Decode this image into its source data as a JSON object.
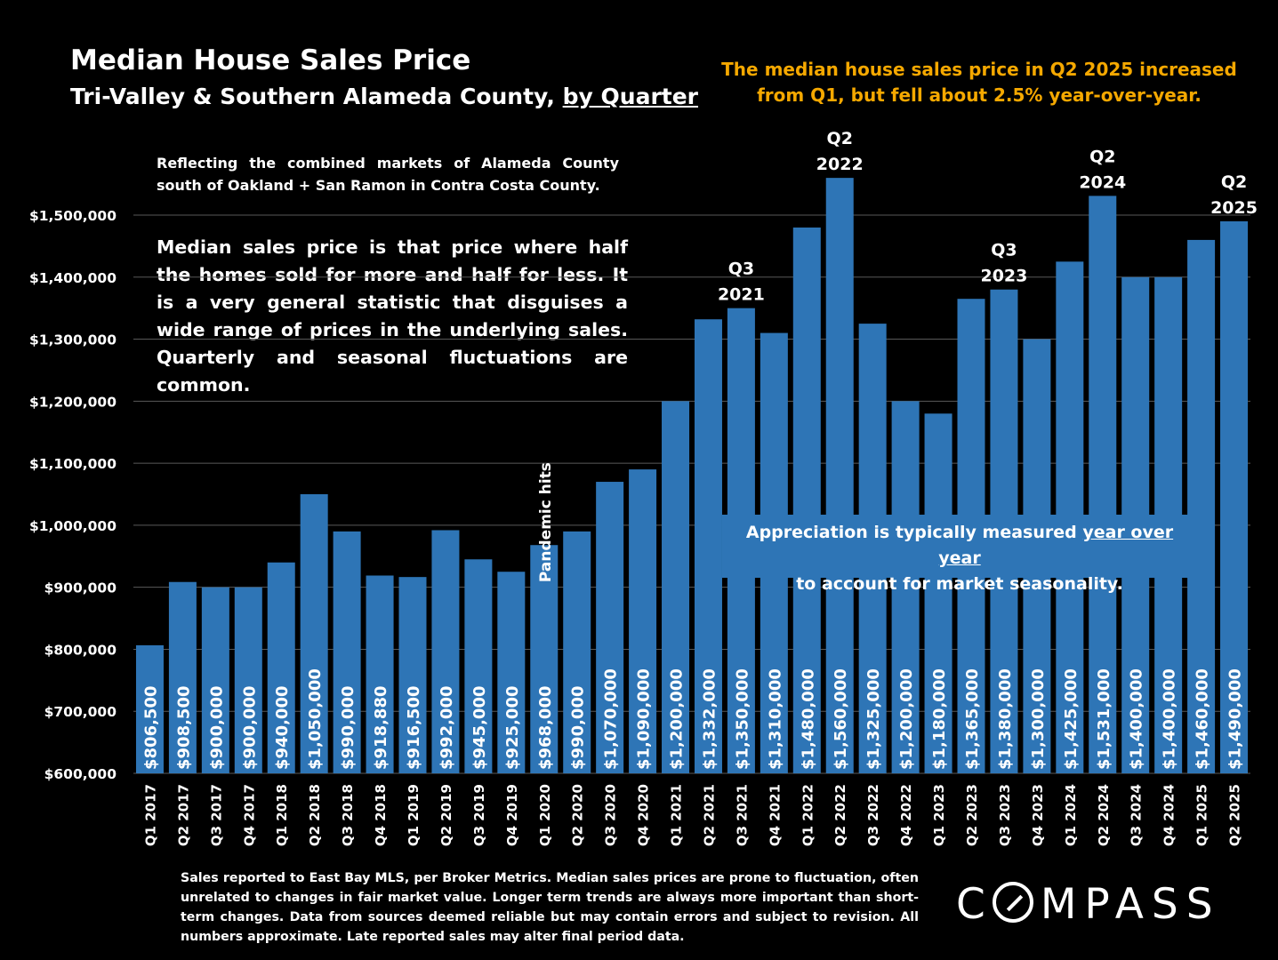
{
  "header": {
    "title": "Median House Sales Price",
    "subtitle_main": "Tri-Valley & Southern Alameda County, ",
    "subtitle_underlined": "by Quarter",
    "headline": "The median house sales price in Q2 2025 increased from Q1, but fell about 2.5% year-over-year."
  },
  "notes": {
    "combined_markets": "Reflecting the combined markets of Alameda County south of Oakland + San Ramon in Contra Costa County.",
    "median_definition": "Median sales price is that price where half the homes sold for more and half for less. It is a very general statistic that disguises a wide range of prices in the underlying sales. Quarterly and seasonal fluctuations are common.",
    "callout_part1": "Appreciation is typically measured ",
    "callout_underlined": "year over year",
    "callout_part2": "to account for market seasonality.",
    "footer": "Sales reported to East Bay MLS, per Broker Metrics. Median sales prices are prone to fluctuation, often unrelated to changes in fair market value. Longer term trends are always more important than short-term changes. Data from sources deemed reliable but may contain errors and subject to revision. All numbers approximate. Late reported sales may alter final period data."
  },
  "logo": {
    "text": "COMPASS"
  },
  "colors": {
    "background": "#000000",
    "bar": "#2e75b6",
    "accent": "#f5a800",
    "text": "#ffffff"
  },
  "chart_data": {
    "type": "bar",
    "title": "Median House Sales Price",
    "categories": [
      "Q1 2017",
      "Q2 2017",
      "Q3 2017",
      "Q4 2017",
      "Q1 2018",
      "Q2 2018",
      "Q3 2018",
      "Q4 2018",
      "Q1 2019",
      "Q2 2019",
      "Q3 2019",
      "Q4 2019",
      "Q1 2020",
      "Q2 2020",
      "Q3 2020",
      "Q4 2020",
      "Q1 2021",
      "Q2 2021",
      "Q3 2021",
      "Q4 2021",
      "Q1 2022",
      "Q2 2022",
      "Q3 2022",
      "Q4 2022",
      "Q1 2023",
      "Q2 2023",
      "Q3 2023",
      "Q4 2023",
      "Q1 2024",
      "Q2 2024",
      "Q3 2024",
      "Q4 2024",
      "Q1 2025",
      "Q2 2025"
    ],
    "values": [
      806500,
      908500,
      900000,
      900000,
      940000,
      1050000,
      990000,
      918880,
      916500,
      992000,
      945000,
      925000,
      968000,
      990000,
      1070000,
      1090000,
      1200000,
      1332000,
      1350000,
      1310000,
      1480000,
      1560000,
      1325000,
      1200000,
      1180000,
      1365000,
      1380000,
      1300000,
      1425000,
      1531000,
      1400000,
      1400000,
      1460000,
      1490000
    ],
    "value_labels": [
      "$806,500",
      "$908,500",
      "$900,000",
      "$900,000",
      "$940,000",
      "$1,050,000",
      "$990,000",
      "$918,880",
      "$916,500",
      "$992,000",
      "$945,000",
      "$925,000",
      "$968,000",
      "$990,000",
      "$1,070,000",
      "$1,090,000",
      "$1,200,000",
      "$1,332,000",
      "$1,350,000",
      "$1,310,000",
      "$1,480,000",
      "$1,560,000",
      "$1,325,000",
      "$1,200,000",
      "$1,180,000",
      "$1,365,000",
      "$1,380,000",
      "$1,300,000",
      "$1,425,000",
      "$1,531,000",
      "$1,400,000",
      "$1,400,000",
      "$1,460,000",
      "$1,490,000"
    ],
    "ylim": [
      600000,
      1500000
    ],
    "yticks": [
      600000,
      700000,
      800000,
      900000,
      1000000,
      1100000,
      1200000,
      1300000,
      1400000,
      1500000
    ],
    "ytick_labels": [
      "$600,000",
      "$700,000",
      "$800,000",
      "$900,000",
      "$1,000,000",
      "$1,100,000",
      "$1,200,000",
      "$1,300,000",
      "$1,400,000",
      "$1,500,000"
    ],
    "grid": true,
    "legend": "none",
    "annotations": [
      {
        "category_index": 12,
        "text": "Pandemic hits",
        "orientation": "vertical"
      },
      {
        "category_index": 18,
        "lines": [
          "Q3",
          "2021"
        ]
      },
      {
        "category_index": 21,
        "lines": [
          "Q2",
          "2022"
        ]
      },
      {
        "category_index": 26,
        "lines": [
          "Q3",
          "2023"
        ]
      },
      {
        "category_index": 29,
        "lines": [
          "Q2",
          "2024"
        ]
      },
      {
        "category_index": 33,
        "lines": [
          "Q2",
          "2025"
        ]
      }
    ]
  }
}
